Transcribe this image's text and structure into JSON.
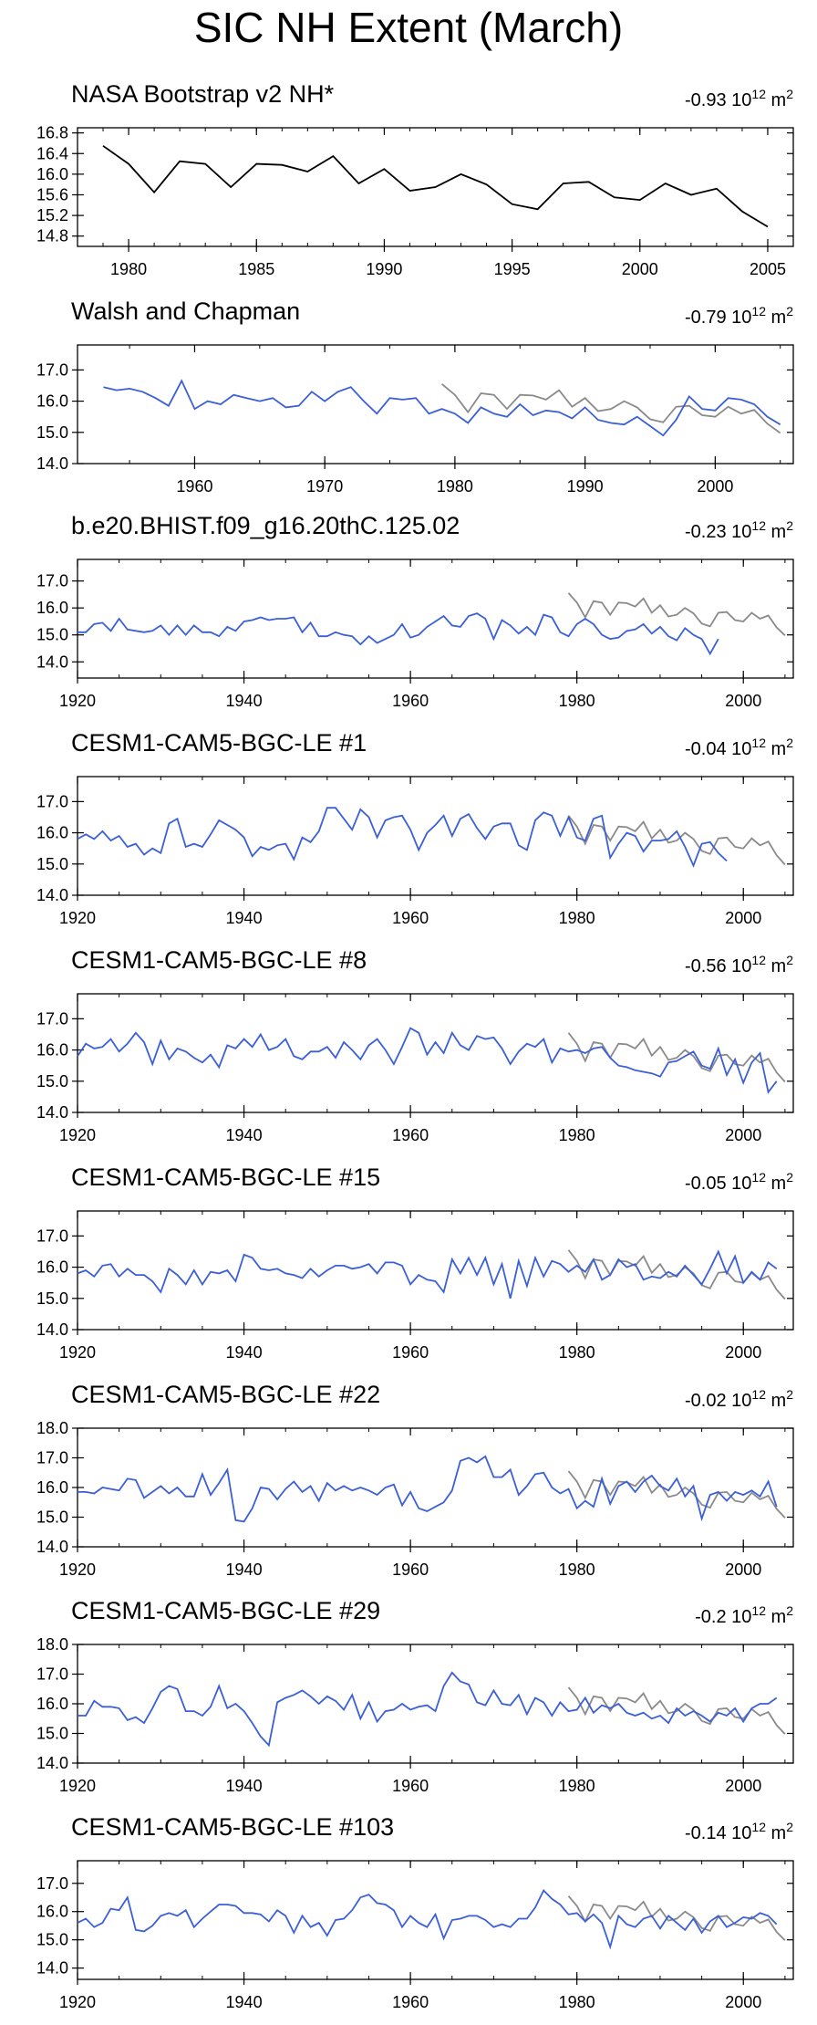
{
  "title": "SIC NH Extent (March)",
  "colors": {
    "model": "#3b5fd6",
    "obs": "#8a8a8a",
    "black": "#000000"
  },
  "obs_years": [
    1979,
    1980,
    1981,
    1982,
    1983,
    1984,
    1985,
    1986,
    1987,
    1988,
    1989,
    1990,
    1991,
    1992,
    1993,
    1994,
    1995,
    1996,
    1997,
    1998,
    1999,
    2000,
    2001,
    2002,
    2003,
    2004,
    2005
  ],
  "obs_values": [
    16.55,
    16.2,
    15.65,
    16.25,
    16.2,
    15.75,
    16.2,
    16.18,
    16.05,
    16.35,
    15.82,
    16.1,
    15.68,
    15.75,
    16.0,
    15.8,
    15.42,
    15.32,
    15.82,
    15.85,
    15.55,
    15.5,
    15.82,
    15.6,
    15.72,
    15.28,
    14.98
  ],
  "chart_data": [
    {
      "type": "line",
      "title": "NASA Bootstrap v2 NH*",
      "trend_label": "-0.93",
      "trend_unit": "10",
      "trend_exp": "12",
      "trend_unit2": " m",
      "trend_exp2": "2",
      "x_start": 1979,
      "xlim": [
        1978,
        2006
      ],
      "ylim": [
        14.6,
        16.9
      ],
      "yticks": [
        14.8,
        15.2,
        15.6,
        16.0,
        16.4,
        16.8
      ],
      "ytick_labels": [
        "14.8",
        "15.2",
        "15.6",
        "16.0",
        "16.4",
        "16.8"
      ],
      "xticks": [
        1980,
        1985,
        1990,
        1995,
        2000,
        2005
      ],
      "xtick_labels": [
        "1980",
        "1985",
        "1990",
        "1995",
        "2000",
        "2005"
      ],
      "color": "black",
      "overlay": false,
      "values": [
        16.55,
        16.2,
        15.65,
        16.25,
        16.2,
        15.75,
        16.2,
        16.18,
        16.05,
        16.35,
        15.82,
        16.1,
        15.68,
        15.75,
        16.0,
        15.8,
        15.42,
        15.32,
        15.82,
        15.85,
        15.55,
        15.5,
        15.82,
        15.6,
        15.72,
        15.28,
        14.98
      ]
    },
    {
      "type": "line",
      "title": "Walsh and Chapman",
      "trend_label": "-0.79",
      "trend_unit": "10",
      "trend_exp": "12",
      "trend_unit2": " m",
      "trend_exp2": "2",
      "x_start": 1953,
      "xlim": [
        1951,
        2006
      ],
      "ylim": [
        14.0,
        17.8
      ],
      "yticks": [
        14.0,
        15.0,
        16.0,
        17.0
      ],
      "ytick_labels": [
        "14.0",
        "15.0",
        "16.0",
        "17.0"
      ],
      "xticks": [
        1960,
        1970,
        1980,
        1990,
        2000
      ],
      "xtick_labels": [
        "1960",
        "1970",
        "1980",
        "1990",
        "2000"
      ],
      "color": "model",
      "overlay": true,
      "values": [
        16.45,
        16.35,
        16.4,
        16.3,
        16.1,
        15.85,
        16.65,
        15.75,
        16.0,
        15.9,
        16.2,
        16.1,
        16.0,
        16.1,
        15.8,
        15.85,
        16.3,
        16.0,
        16.3,
        16.45,
        16.0,
        15.6,
        16.1,
        16.05,
        16.1,
        15.6,
        15.75,
        15.6,
        15.3,
        15.8,
        15.6,
        15.5,
        15.9,
        15.55,
        15.7,
        15.65,
        15.45,
        15.8,
        15.4,
        15.3,
        15.25,
        15.5,
        15.2,
        14.9,
        15.4,
        16.15,
        15.75,
        15.7,
        16.1,
        16.05,
        15.9,
        15.5,
        15.25
      ]
    },
    {
      "type": "line",
      "title": "b.e20.BHIST.f09_g16.20thC.125.02",
      "trend_label": "-0.23",
      "trend_unit": "10",
      "trend_exp": "12",
      "trend_unit2": " m",
      "trend_exp2": "2",
      "x_start": 1920,
      "xlim": [
        1920,
        2006
      ],
      "ylim": [
        13.4,
        17.8
      ],
      "yticks": [
        14.0,
        15.0,
        16.0,
        17.0
      ],
      "ytick_labels": [
        "14.0",
        "15.0",
        "16.0",
        "17.0"
      ],
      "xticks": [
        1920,
        1940,
        1960,
        1980,
        2000
      ],
      "xtick_labels": [
        "1920",
        "1940",
        "1960",
        "1980",
        "2000"
      ],
      "color": "model",
      "overlay": true,
      "values": [
        15.1,
        15.1,
        15.4,
        15.45,
        15.15,
        15.6,
        15.2,
        15.15,
        15.1,
        15.15,
        15.35,
        15.0,
        15.35,
        15.0,
        15.35,
        15.1,
        15.1,
        14.95,
        15.3,
        15.15,
        15.5,
        15.55,
        15.65,
        15.55,
        15.6,
        15.6,
        15.65,
        15.1,
        15.45,
        14.95,
        14.95,
        15.1,
        15.0,
        14.95,
        14.65,
        14.95,
        14.7,
        14.85,
        15.0,
        15.4,
        14.9,
        15.0,
        15.3,
        15.5,
        15.7,
        15.35,
        15.3,
        15.7,
        15.8,
        15.6,
        14.85,
        15.55,
        15.35,
        15.05,
        15.3,
        15.0,
        15.75,
        15.65,
        15.1,
        14.95,
        15.4,
        15.6,
        15.4,
        15.0,
        14.85,
        14.9,
        15.15,
        15.2,
        15.4,
        15.05,
        15.3,
        14.95,
        14.8,
        15.25,
        15.0,
        14.85,
        14.3,
        14.85
      ]
    },
    {
      "type": "line",
      "title": "CESM1-CAM5-BGC-LE #1",
      "trend_label": "-0.04",
      "trend_unit": "10",
      "trend_exp": "12",
      "trend_unit2": " m",
      "trend_exp2": "2",
      "x_start": 1920,
      "xlim": [
        1920,
        2006
      ],
      "ylim": [
        14.0,
        17.8
      ],
      "yticks": [
        14.0,
        15.0,
        16.0,
        17.0
      ],
      "ytick_labels": [
        "14.0",
        "15.0",
        "16.0",
        "17.0"
      ],
      "xticks": [
        1920,
        1940,
        1960,
        1980,
        2000
      ],
      "xtick_labels": [
        "1920",
        "1940",
        "1960",
        "1980",
        "2000"
      ],
      "color": "model",
      "overlay": true,
      "values": [
        15.8,
        15.95,
        15.8,
        16.05,
        15.75,
        15.9,
        15.55,
        15.65,
        15.3,
        15.5,
        15.35,
        16.3,
        16.45,
        15.55,
        15.65,
        15.55,
        15.95,
        16.4,
        16.25,
        16.1,
        15.85,
        15.25,
        15.55,
        15.45,
        15.6,
        15.65,
        15.15,
        15.85,
        15.7,
        16.05,
        16.8,
        16.8,
        16.45,
        16.1,
        16.75,
        16.5,
        15.85,
        16.4,
        16.5,
        16.55,
        16.1,
        15.45,
        16.0,
        16.25,
        16.55,
        15.9,
        16.45,
        16.6,
        16.15,
        15.8,
        16.2,
        16.3,
        16.3,
        15.6,
        15.45,
        16.4,
        16.65,
        16.55,
        15.9,
        16.5,
        15.85,
        15.75,
        16.45,
        16.55,
        15.2,
        15.65,
        16.0,
        15.9,
        15.4,
        15.75,
        15.75,
        15.8,
        16.05,
        15.55,
        14.95,
        15.65,
        15.7,
        15.35,
        15.1
      ]
    },
    {
      "type": "line",
      "title": "CESM1-CAM5-BGC-LE #8",
      "trend_label": "-0.56",
      "trend_unit": "10",
      "trend_exp": "12",
      "trend_unit2": " m",
      "trend_exp2": "2",
      "x_start": 1920,
      "xlim": [
        1920,
        2006
      ],
      "ylim": [
        14.0,
        17.8
      ],
      "yticks": [
        14.0,
        15.0,
        16.0,
        17.0
      ],
      "ytick_labels": [
        "14.0",
        "15.0",
        "16.0",
        "17.0"
      ],
      "xticks": [
        1920,
        1940,
        1960,
        1980,
        2000
      ],
      "xtick_labels": [
        "1920",
        "1940",
        "1960",
        "1980",
        "2000"
      ],
      "color": "model",
      "overlay": true,
      "values": [
        15.8,
        16.2,
        16.05,
        16.1,
        16.35,
        15.95,
        16.2,
        16.55,
        16.25,
        15.55,
        16.3,
        15.7,
        16.05,
        15.95,
        15.75,
        15.6,
        15.85,
        15.45,
        16.15,
        16.05,
        16.35,
        16.1,
        16.5,
        16.0,
        16.1,
        16.35,
        15.8,
        15.7,
        15.95,
        15.95,
        16.1,
        15.75,
        16.25,
        16.0,
        15.7,
        16.15,
        16.35,
        16.0,
        15.55,
        16.1,
        16.7,
        16.55,
        15.85,
        16.25,
        15.9,
        16.55,
        16.15,
        16.0,
        16.45,
        16.35,
        16.4,
        16.05,
        15.55,
        15.95,
        16.2,
        16.1,
        16.35,
        15.6,
        16.05,
        15.95,
        16.0,
        15.9,
        16.05,
        16.1,
        15.75,
        15.5,
        15.45,
        15.35,
        15.3,
        15.25,
        15.15,
        15.6,
        15.65,
        15.8,
        15.95,
        15.5,
        15.4,
        16.05,
        15.2,
        15.7,
        14.95,
        15.6,
        15.9,
        14.65,
        15.0
      ]
    },
    {
      "type": "line",
      "title": "CESM1-CAM5-BGC-LE #15",
      "trend_label": "-0.05",
      "trend_unit": "10",
      "trend_exp": "12",
      "trend_unit2": " m",
      "trend_exp2": "2",
      "x_start": 1920,
      "xlim": [
        1920,
        2006
      ],
      "ylim": [
        14.0,
        17.8
      ],
      "yticks": [
        14.0,
        15.0,
        16.0,
        17.0
      ],
      "ytick_labels": [
        "14.0",
        "15.0",
        "16.0",
        "17.0"
      ],
      "xticks": [
        1920,
        1940,
        1960,
        1980,
        2000
      ],
      "xtick_labels": [
        "1920",
        "1940",
        "1960",
        "1980",
        "2000"
      ],
      "color": "model",
      "overlay": true,
      "values": [
        15.8,
        15.9,
        15.7,
        16.05,
        16.1,
        15.7,
        15.95,
        15.75,
        15.75,
        15.55,
        15.2,
        15.95,
        15.75,
        15.45,
        15.9,
        15.45,
        15.85,
        15.8,
        15.9,
        15.55,
        16.4,
        16.3,
        15.95,
        15.9,
        15.95,
        15.8,
        15.75,
        15.65,
        15.95,
        15.7,
        15.9,
        16.05,
        16.05,
        15.95,
        16.0,
        16.1,
        15.8,
        16.15,
        16.15,
        16.05,
        15.45,
        15.75,
        15.6,
        15.55,
        15.2,
        16.25,
        15.8,
        16.3,
        15.75,
        16.3,
        15.45,
        16.1,
        15.0,
        16.2,
        15.4,
        16.3,
        15.7,
        16.2,
        16.1,
        15.85,
        16.05,
        15.85,
        16.25,
        15.6,
        15.75,
        16.25,
        16.0,
        16.1,
        15.6,
        15.7,
        15.65,
        15.85,
        15.7,
        16.05,
        15.75,
        15.45,
        15.95,
        16.5,
        15.8,
        16.35,
        15.5,
        15.85,
        15.6,
        16.15,
        15.95
      ]
    },
    {
      "type": "line",
      "title": "CESM1-CAM5-BGC-LE #22",
      "trend_label": "-0.02",
      "trend_unit": "10",
      "trend_exp": "12",
      "trend_unit2": " m",
      "trend_exp2": "2",
      "x_start": 1920,
      "xlim": [
        1920,
        2006
      ],
      "ylim": [
        14.0,
        18.0
      ],
      "yticks": [
        14.0,
        15.0,
        16.0,
        17.0,
        18.0
      ],
      "ytick_labels": [
        "14.0",
        "15.0",
        "16.0",
        "17.0",
        "18.0"
      ],
      "xticks": [
        1920,
        1940,
        1960,
        1980,
        2000
      ],
      "xtick_labels": [
        "1920",
        "1940",
        "1960",
        "1980",
        "2000"
      ],
      "color": "model",
      "overlay": true,
      "values": [
        15.85,
        15.85,
        15.8,
        16.0,
        15.95,
        15.9,
        16.3,
        16.25,
        15.65,
        15.85,
        16.05,
        15.8,
        16.0,
        15.7,
        15.7,
        16.45,
        15.75,
        16.15,
        16.6,
        14.9,
        14.85,
        15.3,
        16.0,
        15.95,
        15.6,
        15.95,
        16.2,
        15.85,
        16.05,
        15.55,
        16.15,
        15.9,
        16.05,
        15.9,
        16.0,
        15.9,
        15.75,
        16.0,
        16.1,
        15.4,
        15.85,
        15.3,
        15.2,
        15.35,
        15.5,
        15.9,
        16.9,
        17.0,
        16.85,
        17.05,
        16.35,
        16.35,
        16.6,
        15.75,
        16.05,
        16.45,
        16.5,
        16.0,
        15.8,
        15.95,
        15.3,
        15.55,
        15.35,
        16.3,
        15.45,
        16.05,
        16.2,
        15.85,
        16.2,
        16.4,
        16.05,
        15.9,
        16.3,
        15.7,
        16.05,
        14.95,
        15.75,
        15.85,
        15.55,
        15.85,
        15.75,
        15.9,
        15.7,
        16.2,
        15.35
      ]
    },
    {
      "type": "line",
      "title": "CESM1-CAM5-BGC-LE #29",
      "trend_label": "-0.2",
      "trend_unit": "10",
      "trend_exp": "12",
      "trend_unit2": " m",
      "trend_exp2": "2",
      "x_start": 1920,
      "xlim": [
        1920,
        2006
      ],
      "ylim": [
        14.0,
        18.0
      ],
      "yticks": [
        14.0,
        15.0,
        16.0,
        17.0,
        18.0
      ],
      "ytick_labels": [
        "14.0",
        "15.0",
        "16.0",
        "17.0",
        "18.0"
      ],
      "xticks": [
        1920,
        1940,
        1960,
        1980,
        2000
      ],
      "xtick_labels": [
        "1920",
        "1940",
        "1960",
        "1980",
        "2000"
      ],
      "color": "model",
      "overlay": true,
      "values": [
        15.6,
        15.6,
        16.1,
        15.9,
        15.9,
        15.85,
        15.45,
        15.55,
        15.35,
        15.85,
        16.4,
        16.6,
        16.5,
        15.75,
        15.75,
        15.6,
        15.9,
        16.6,
        15.85,
        16.0,
        15.75,
        15.35,
        14.9,
        14.6,
        16.05,
        16.2,
        16.3,
        16.45,
        16.25,
        16.0,
        16.25,
        16.1,
        15.8,
        16.3,
        15.5,
        16.05,
        15.4,
        15.75,
        15.8,
        16.0,
        15.8,
        15.9,
        15.95,
        15.75,
        16.6,
        17.05,
        16.75,
        16.65,
        16.05,
        15.95,
        16.45,
        16.0,
        15.95,
        16.3,
        15.65,
        16.2,
        16.05,
        15.6,
        16.05,
        15.75,
        15.8,
        16.2,
        15.7,
        15.95,
        15.85,
        16.0,
        15.7,
        15.6,
        15.7,
        15.5,
        15.6,
        15.35,
        15.85,
        15.6,
        15.75,
        15.6,
        15.4,
        15.7,
        15.6,
        15.85,
        15.4,
        15.85,
        16.0,
        16.0,
        16.2
      ]
    },
    {
      "type": "line",
      "title": "CESM1-CAM5-BGC-LE #103",
      "trend_label": "-0.14",
      "trend_unit": "10",
      "trend_exp": "12",
      "trend_unit2": " m",
      "trend_exp2": "2",
      "x_start": 1920,
      "xlim": [
        1920,
        2006
      ],
      "ylim": [
        13.6,
        17.8
      ],
      "yticks": [
        14.0,
        15.0,
        16.0,
        17.0
      ],
      "ytick_labels": [
        "14.0",
        "15.0",
        "16.0",
        "17.0"
      ],
      "xticks": [
        1920,
        1940,
        1960,
        1980,
        2000
      ],
      "xtick_labels": [
        "1920",
        "1940",
        "1960",
        "1980",
        "2000"
      ],
      "color": "model",
      "overlay": true,
      "values": [
        15.6,
        15.75,
        15.45,
        15.6,
        16.1,
        16.05,
        16.5,
        15.35,
        15.3,
        15.5,
        15.85,
        15.95,
        15.85,
        16.05,
        15.45,
        15.75,
        16.0,
        16.25,
        16.25,
        16.2,
        15.95,
        15.95,
        15.9,
        15.65,
        16.05,
        15.85,
        15.25,
        15.85,
        15.45,
        15.6,
        15.15,
        15.7,
        15.75,
        16.05,
        16.5,
        16.6,
        16.3,
        16.25,
        16.05,
        15.45,
        15.85,
        15.6,
        15.45,
        15.9,
        15.05,
        15.7,
        15.75,
        15.85,
        15.85,
        15.7,
        15.45,
        15.55,
        15.45,
        15.75,
        15.75,
        16.15,
        16.75,
        16.45,
        16.25,
        15.9,
        15.95,
        15.65,
        15.9,
        15.6,
        14.75,
        15.85,
        15.55,
        15.45,
        15.75,
        15.85,
        15.4,
        15.85,
        15.6,
        15.35,
        15.75,
        15.25,
        15.65,
        15.85,
        15.45,
        15.6,
        15.8,
        15.75,
        15.95,
        15.85,
        15.55
      ]
    }
  ]
}
